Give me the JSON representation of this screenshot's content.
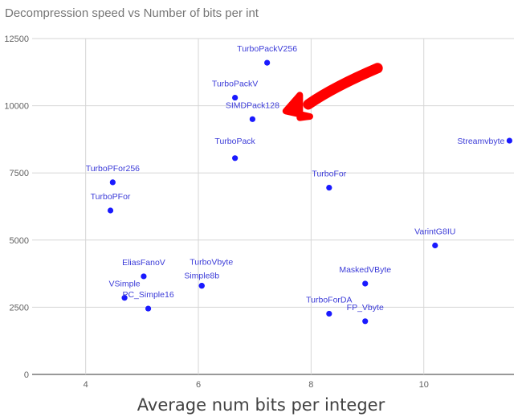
{
  "chart_data": {
    "type": "scatter",
    "title": "Decompression speed vs Number of bits per int",
    "xlabel": "Average num bits per integer",
    "ylabel": "",
    "xlim": [
      3.05,
      11.6
    ],
    "ylim": [
      0,
      12500
    ],
    "x_ticks": [
      4,
      6,
      8,
      10
    ],
    "y_ticks": [
      0,
      2500,
      5000,
      7500,
      10000,
      12500
    ],
    "grid": true,
    "marker_color": "#1a1aff",
    "label_color": "#3b3bd8",
    "annotation_color": "#ff0000",
    "points": [
      {
        "label": "TurboPackV256",
        "x": 7.22,
        "y": 11600
      },
      {
        "label": "TurboPackV",
        "x": 6.65,
        "y": 10300
      },
      {
        "label": "SIMDPack128",
        "x": 6.96,
        "y": 9500
      },
      {
        "label": "TurboPack",
        "x": 6.65,
        "y": 8050
      },
      {
        "label": "TurboPFor256",
        "x": 4.48,
        "y": 7150
      },
      {
        "label": "TurboPFor",
        "x": 4.44,
        "y": 6100
      },
      {
        "label": "TurboFor",
        "x": 8.32,
        "y": 6950
      },
      {
        "label": "Streamvbyte",
        "x": 11.52,
        "y": 8700
      },
      {
        "label": "VarintG8IU",
        "x": 10.2,
        "y": 4800
      },
      {
        "label": "EliasFanoV",
        "x": 5.03,
        "y": 3650
      },
      {
        "label": "TurboVbyte",
        "x": 6.06,
        "y": 3300
      },
      {
        "label": "Simple8b",
        "x": 6.06,
        "y": 3300
      },
      {
        "label": "VSimple",
        "x": 4.69,
        "y": 2850
      },
      {
        "label": "PC_Simple16",
        "x": 5.11,
        "y": 2450
      },
      {
        "label": "MaskedVByte",
        "x": 8.96,
        "y": 3380
      },
      {
        "label": "TurboForDA",
        "x": 8.32,
        "y": 2260
      },
      {
        "label": "FP_Vbyte",
        "x": 8.96,
        "y": 1980
      }
    ]
  }
}
